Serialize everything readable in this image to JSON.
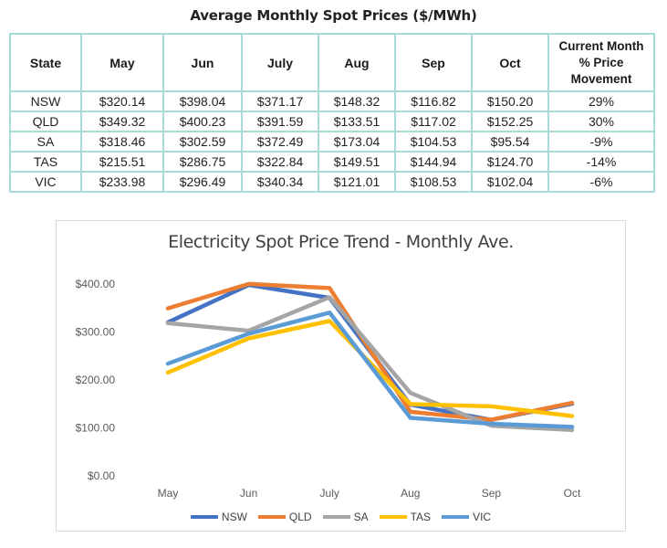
{
  "table": {
    "title": "Average Monthly Spot Prices ($/MWh)",
    "headers": [
      "State",
      "May",
      "Jun",
      "July",
      "Aug",
      "Sep",
      "Oct"
    ],
    "movement_header": [
      "Current Month",
      "% Price",
      "Movement"
    ],
    "rows": [
      {
        "state": "NSW",
        "prices": [
          "$320.14",
          "$398.04",
          "$371.17",
          "$148.32",
          "$116.82",
          "$150.20"
        ],
        "movement": "29%"
      },
      {
        "state": "QLD",
        "prices": [
          "$349.32",
          "$400.23",
          "$391.59",
          "$133.51",
          "$117.02",
          "$152.25"
        ],
        "movement": "30%"
      },
      {
        "state": "SA",
        "prices": [
          "$318.46",
          "$302.59",
          "$372.49",
          "$173.04",
          "$104.53",
          "$95.54"
        ],
        "movement": "-9%"
      },
      {
        "state": "TAS",
        "prices": [
          "$215.51",
          "$286.75",
          "$322.84",
          "$149.51",
          "$144.94",
          "$124.70"
        ],
        "movement": "-14%"
      },
      {
        "state": "VIC",
        "prices": [
          "$233.98",
          "$296.49",
          "$340.34",
          "$121.01",
          "$108.53",
          "$102.04"
        ],
        "movement": "-6%"
      }
    ]
  },
  "chart_data": {
    "type": "line",
    "title": "Electricity Spot Price Trend - Monthly Ave.",
    "categories": [
      "May",
      "Jun",
      "July",
      "Aug",
      "Sep",
      "Oct"
    ],
    "ylim": [
      0,
      400
    ],
    "yticks": [
      0,
      100,
      200,
      300,
      400
    ],
    "ytick_labels": [
      "$0.00",
      "$100.00",
      "$200.00",
      "$300.00",
      "$400.00"
    ],
    "grid": false,
    "legend_position": "bottom",
    "series": [
      {
        "name": "NSW",
        "color": "#4472c4",
        "values": [
          320.14,
          398.04,
          371.17,
          148.32,
          116.82,
          150.2
        ]
      },
      {
        "name": "QLD",
        "color": "#ed7d31",
        "values": [
          349.32,
          400.23,
          391.59,
          133.51,
          117.02,
          152.25
        ]
      },
      {
        "name": "SA",
        "color": "#a5a5a5",
        "values": [
          318.46,
          302.59,
          372.49,
          173.04,
          104.53,
          95.54
        ]
      },
      {
        "name": "TAS",
        "color": "#ffc000",
        "values": [
          215.51,
          286.75,
          322.84,
          149.51,
          144.94,
          124.7
        ]
      },
      {
        "name": "VIC",
        "color": "#5b9bd5",
        "values": [
          233.98,
          296.49,
          340.34,
          121.01,
          108.53,
          102.04
        ]
      }
    ]
  }
}
